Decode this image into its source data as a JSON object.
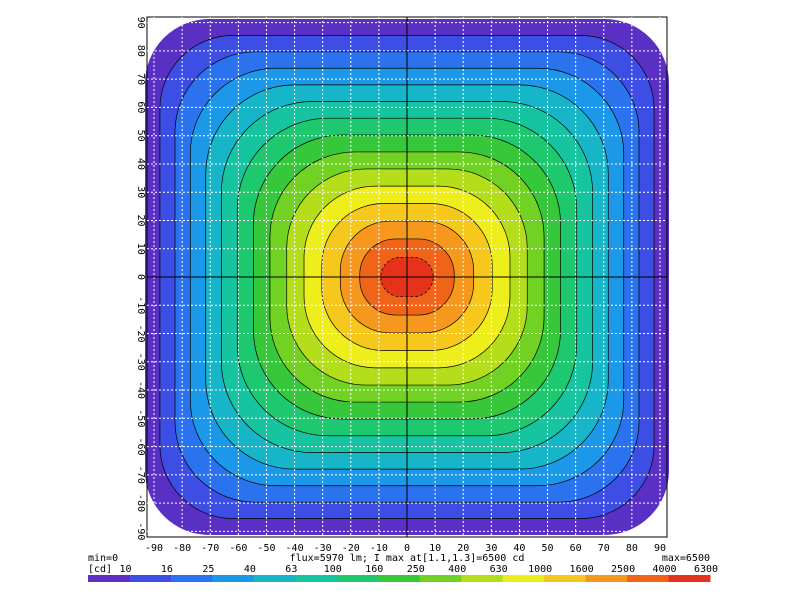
{
  "chart_data": {
    "type": "heatmap",
    "caption": "flux=5970 lm; I max at[1.1,1.3]=6500 cd",
    "min_label": "min=0",
    "max_label": "max=6500",
    "unit_label": "[cd]",
    "levels": [
      10,
      16,
      25,
      40,
      63,
      100,
      160,
      250,
      400,
      630,
      1000,
      1600,
      2500,
      4000,
      6300
    ],
    "colors": [
      "#5a2fc4",
      "#3d4ee4",
      "#2a72ee",
      "#1c98e8",
      "#16b6c8",
      "#16c4a0",
      "#1ec86e",
      "#36c83a",
      "#72d224",
      "#b4de1c",
      "#eeee1c",
      "#f6c81e",
      "#f6981e",
      "#f0641a",
      "#e6321a"
    ],
    "xlim": [
      -92.5,
      92.5
    ],
    "ylim": [
      -92,
      92
    ],
    "xticks": [
      -90,
      -80,
      -70,
      -60,
      -50,
      -40,
      -30,
      -20,
      -10,
      0,
      10,
      20,
      30,
      40,
      50,
      60,
      70,
      80,
      90
    ],
    "yticks": [
      -90,
      -80,
      -70,
      -60,
      -50,
      -40,
      -30,
      -20,
      -10,
      0,
      10,
      20,
      30,
      40,
      50,
      60,
      70,
      80,
      90
    ],
    "grid": true
  }
}
